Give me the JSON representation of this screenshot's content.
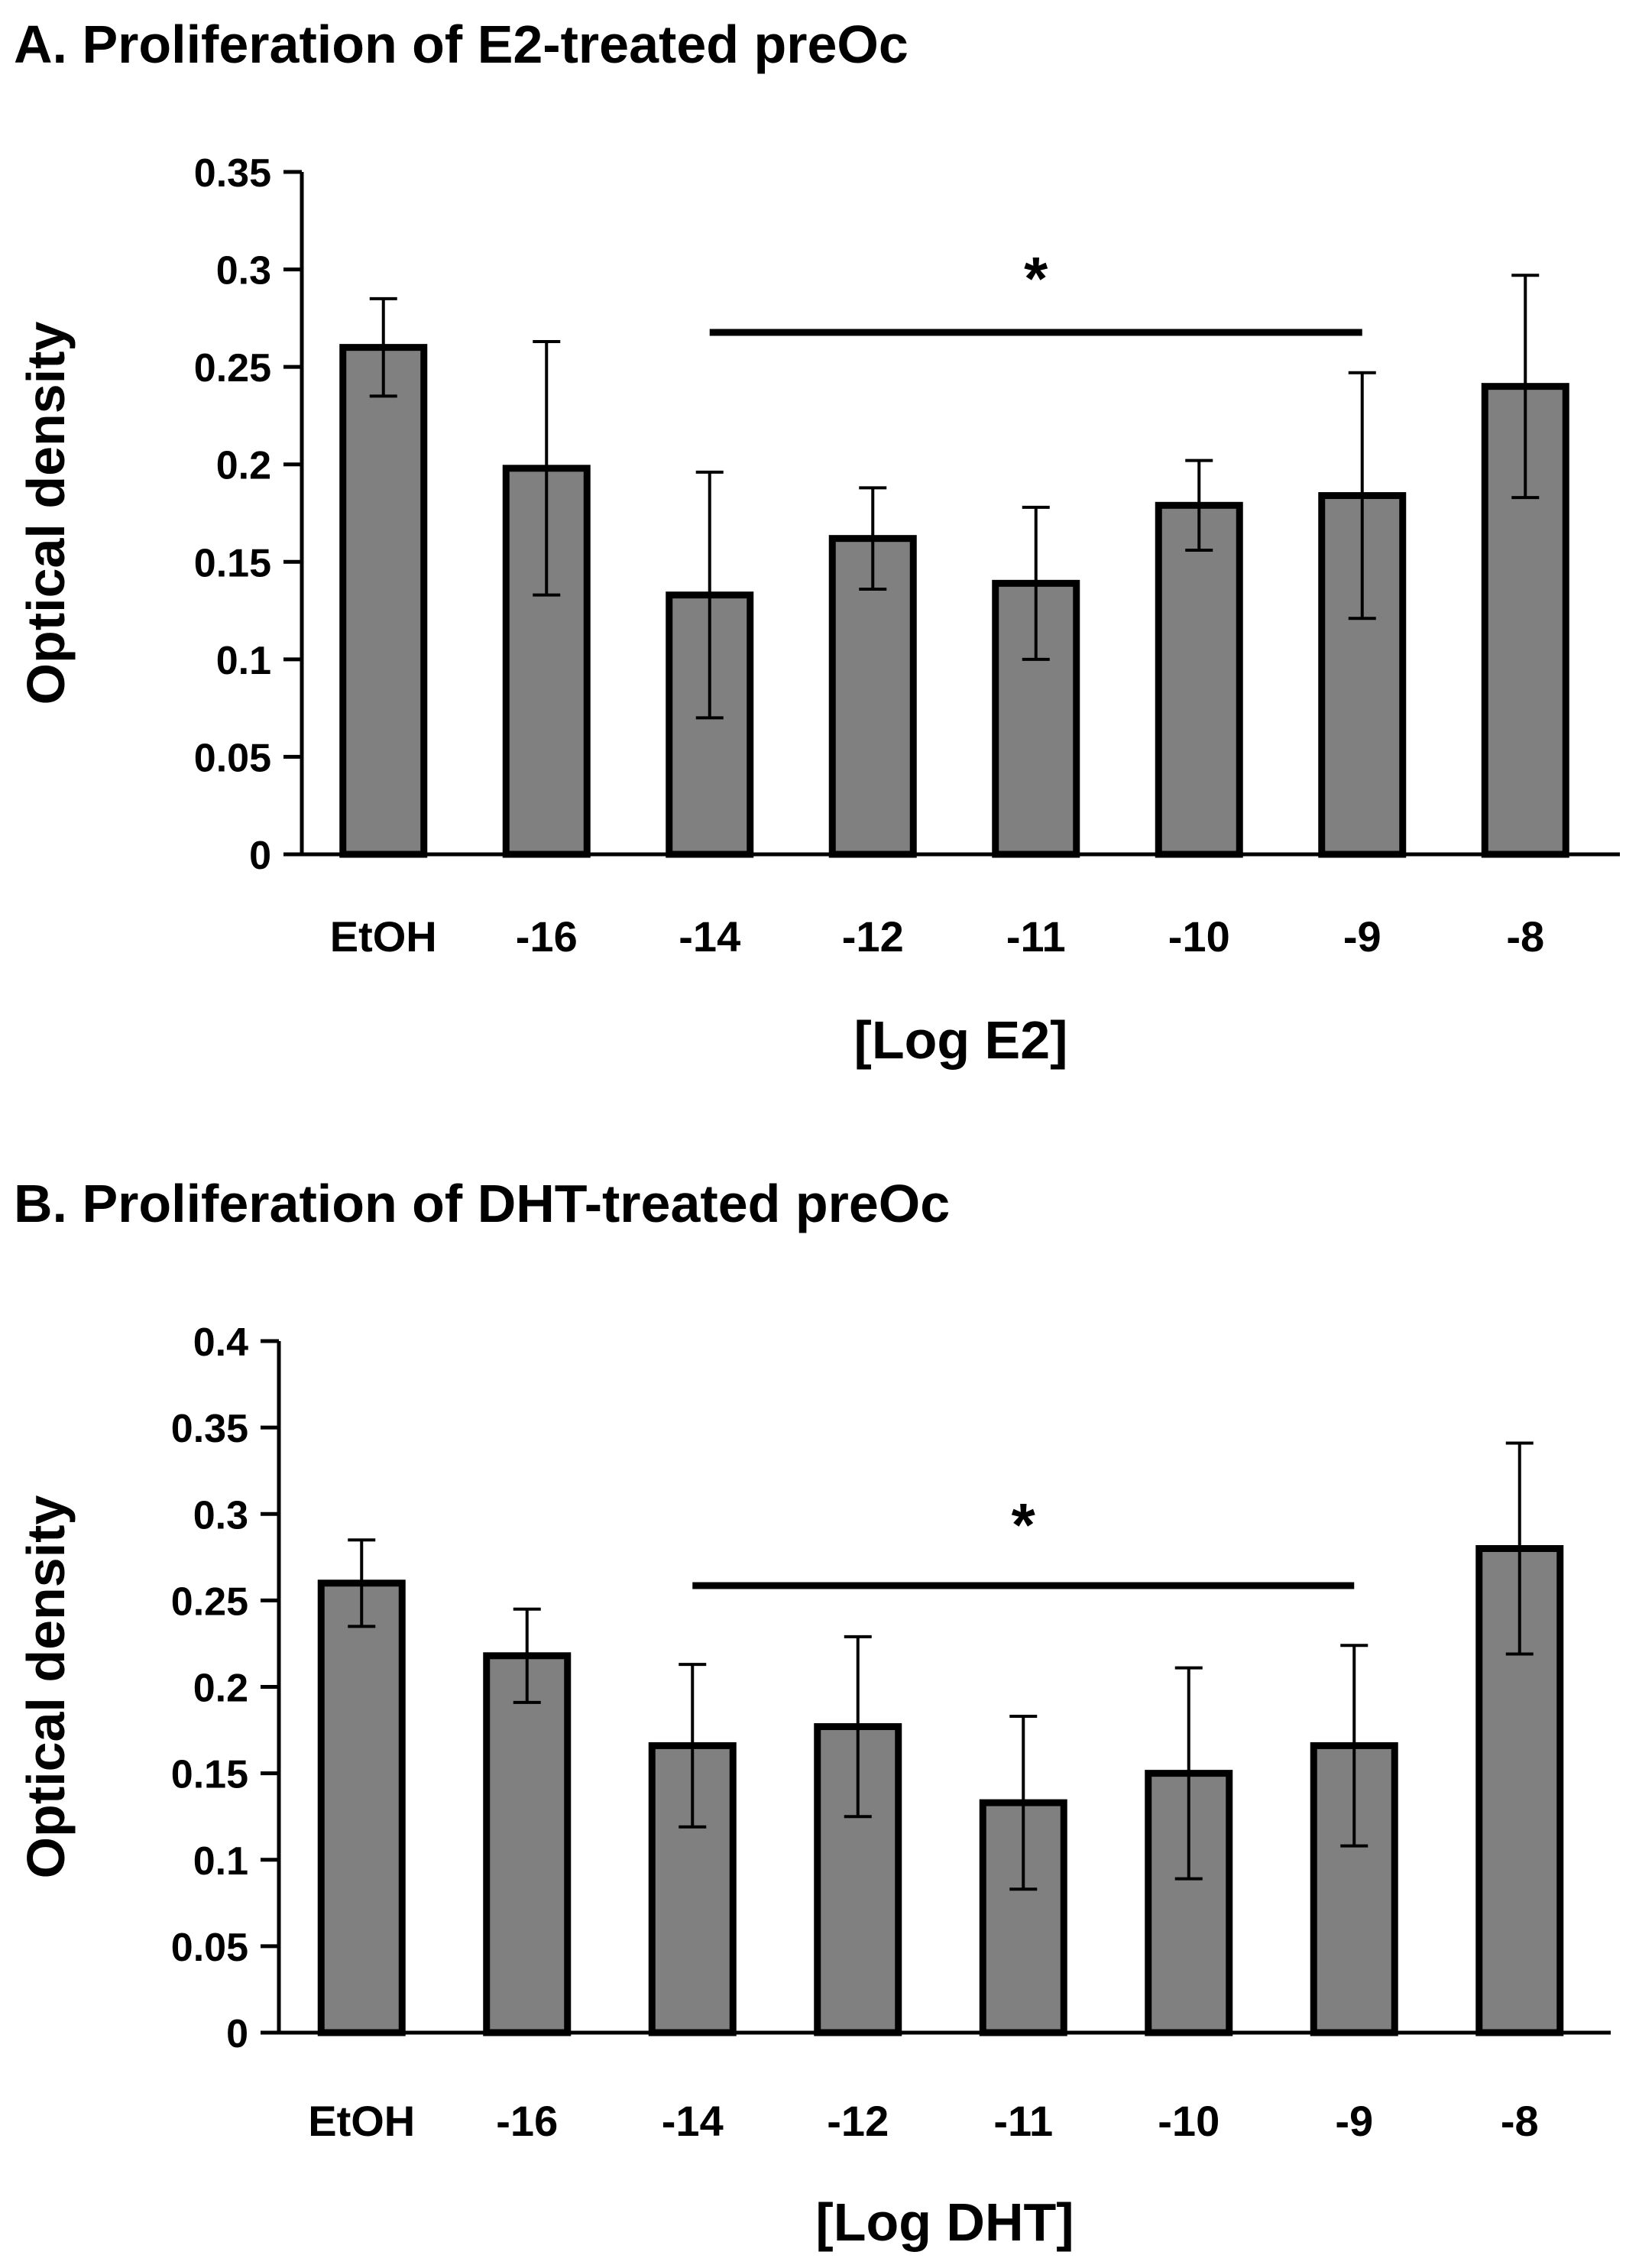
{
  "chart_data": [
    {
      "type": "bar",
      "title": "A. Proliferation of E2-treated preOc",
      "xlabel": "[Log E2]",
      "ylabel": "Optical density",
      "categories": [
        "EtOH",
        "-16",
        "-14",
        "-12",
        "-11",
        "-10",
        "-9",
        "-8"
      ],
      "values": [
        0.26,
        0.198,
        0.133,
        0.162,
        0.139,
        0.179,
        0.184,
        0.24
      ],
      "errors": [
        0.025,
        0.065,
        0.063,
        0.026,
        0.039,
        0.023,
        0.063,
        0.057
      ],
      "ylim": [
        0,
        0.35
      ],
      "yticks": [
        0,
        0.05,
        0.1,
        0.15,
        0.2,
        0.25,
        0.3,
        0.35
      ],
      "ytick_labels": [
        "0",
        "0.05",
        "0.1",
        "0.15",
        "0.2",
        "0.25",
        "0.3",
        "0.35"
      ],
      "significance": {
        "from": "-14",
        "to": "-9",
        "label": "*"
      },
      "bar_color": "#808080",
      "grid": false,
      "legend": "none"
    },
    {
      "type": "bar",
      "title": "B. Proliferation of DHT-treated preOc",
      "xlabel": "[Log DHT]",
      "ylabel": "Optical density",
      "categories": [
        "EtOH",
        "-16",
        "-14",
        "-12",
        "-11",
        "-10",
        "-9",
        "-8"
      ],
      "values": [
        0.26,
        0.218,
        0.166,
        0.177,
        0.133,
        0.15,
        0.166,
        0.28
      ],
      "errors": [
        0.025,
        0.027,
        0.047,
        0.052,
        0.05,
        0.061,
        0.058,
        0.061
      ],
      "ylim": [
        0,
        0.4
      ],
      "yticks": [
        0,
        0.05,
        0.1,
        0.15,
        0.2,
        0.25,
        0.3,
        0.35,
        0.4
      ],
      "ytick_labels": [
        "0",
        "0.05",
        "0.1",
        "0.15",
        "0.2",
        "0.25",
        "0.3",
        "0.35",
        "0.4"
      ],
      "significance": {
        "from": "-14",
        "to": "-9",
        "label": "*"
      },
      "bar_color": "#808080",
      "grid": false,
      "legend": "none"
    }
  ]
}
